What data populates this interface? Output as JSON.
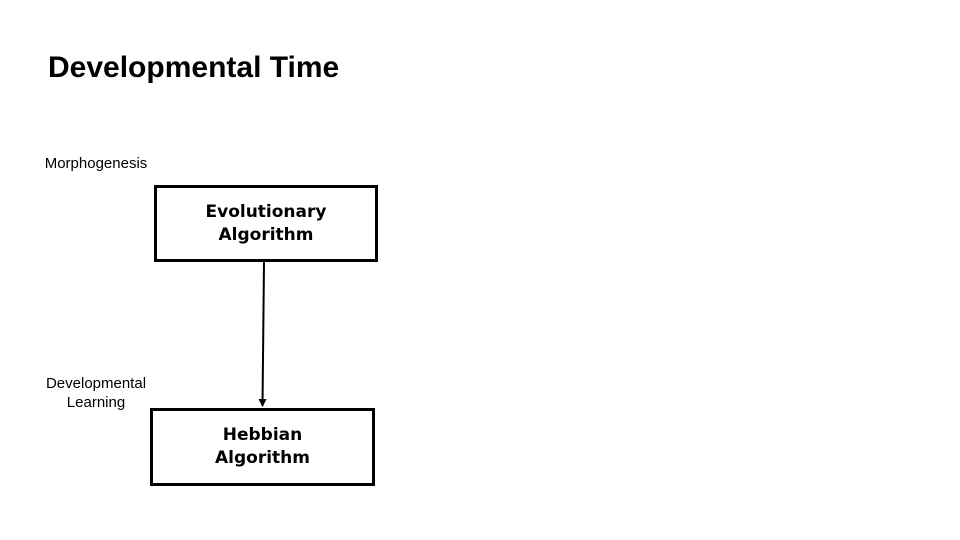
{
  "slide": {
    "title": "Developmental Time"
  },
  "labels": {
    "morphogenesis": "Morphogenesis",
    "developmental_learning": "Developmental\nLearning"
  },
  "nodes": {
    "evolutionary": {
      "label": "Evolutionary Algorithm"
    },
    "hebbian": {
      "label": "Hebbian Algorithm"
    }
  },
  "edges": [
    {
      "from": "evolutionary",
      "to": "hebbian"
    }
  ],
  "colors": {
    "background": "#ffffff",
    "stroke": "#000000",
    "text": "#000000"
  }
}
